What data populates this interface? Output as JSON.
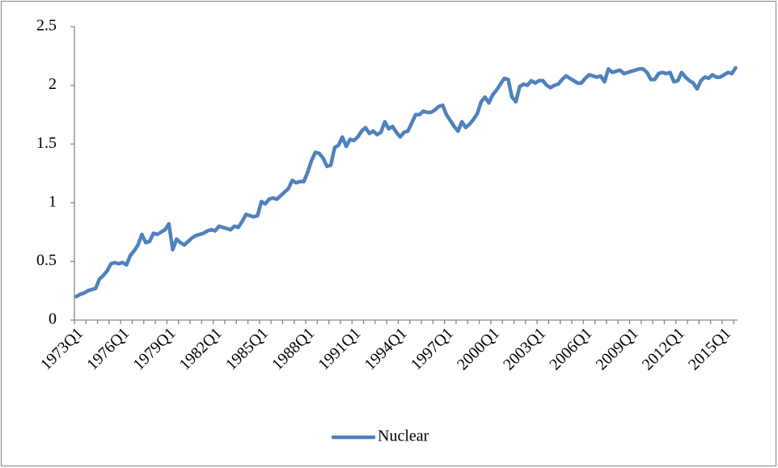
{
  "chart_data": {
    "type": "line",
    "categories": [
      "1973Q1",
      null,
      null,
      null,
      null,
      null,
      null,
      null,
      null,
      null,
      null,
      null,
      "1976Q1",
      null,
      null,
      null,
      null,
      null,
      null,
      null,
      null,
      null,
      null,
      null,
      "1979Q1",
      null,
      null,
      null,
      null,
      null,
      null,
      null,
      null,
      null,
      null,
      null,
      "1982Q1",
      null,
      null,
      null,
      null,
      null,
      null,
      null,
      null,
      null,
      null,
      null,
      "1985Q1",
      null,
      null,
      null,
      null,
      null,
      null,
      null,
      null,
      null,
      null,
      null,
      "1988Q1",
      null,
      null,
      null,
      null,
      null,
      null,
      null,
      null,
      null,
      null,
      null,
      "1991Q1",
      null,
      null,
      null,
      null,
      null,
      null,
      null,
      null,
      null,
      null,
      null,
      "1994Q1",
      null,
      null,
      null,
      null,
      null,
      null,
      null,
      null,
      null,
      null,
      null,
      "1997Q1",
      null,
      null,
      null,
      null,
      null,
      null,
      null,
      null,
      null,
      null,
      null,
      "2000Q1",
      null,
      null,
      null,
      null,
      null,
      null,
      null,
      null,
      null,
      null,
      null,
      "2003Q1",
      null,
      null,
      null,
      null,
      null,
      null,
      null,
      null,
      null,
      null,
      null,
      "2006Q1",
      null,
      null,
      null,
      null,
      null,
      null,
      null,
      null,
      null,
      null,
      null,
      "2009Q1",
      null,
      null,
      null,
      null,
      null,
      null,
      null,
      null,
      null,
      null,
      null,
      "2012Q1",
      null,
      null,
      null,
      null,
      null,
      null,
      null,
      null,
      null,
      null,
      null,
      "2015Q1",
      null,
      null,
      null
    ],
    "series": [
      {
        "name": "Nuclear",
        "color": "#4f81bd",
        "values": [
          0.2,
          0.22,
          0.23,
          0.25,
          0.26,
          0.27,
          0.35,
          0.38,
          0.42,
          0.48,
          0.49,
          0.48,
          0.49,
          0.47,
          0.55,
          0.59,
          0.64,
          0.73,
          0.66,
          0.67,
          0.74,
          0.73,
          0.75,
          0.77,
          0.82,
          0.6,
          0.69,
          0.66,
          0.64,
          0.67,
          0.7,
          0.72,
          0.73,
          0.74,
          0.76,
          0.77,
          0.76,
          0.8,
          0.79,
          0.78,
          0.77,
          0.8,
          0.79,
          0.84,
          0.9,
          0.89,
          0.88,
          0.89,
          1.01,
          0.99,
          1.03,
          1.04,
          1.03,
          1.06,
          1.09,
          1.12,
          1.19,
          1.17,
          1.18,
          1.18,
          1.26,
          1.36,
          1.43,
          1.42,
          1.38,
          1.31,
          1.32,
          1.47,
          1.49,
          1.56,
          1.48,
          1.54,
          1.53,
          1.56,
          1.61,
          1.64,
          1.59,
          1.61,
          1.58,
          1.6,
          1.69,
          1.63,
          1.65,
          1.6,
          1.56,
          1.6,
          1.61,
          1.68,
          1.75,
          1.75,
          1.78,
          1.77,
          1.77,
          1.79,
          1.82,
          1.83,
          1.75,
          1.7,
          1.65,
          1.61,
          1.69,
          1.64,
          1.67,
          1.71,
          1.76,
          1.86,
          1.9,
          1.85,
          1.92,
          1.96,
          2.01,
          2.06,
          2.05,
          1.9,
          1.86,
          1.99,
          2.01,
          2.0,
          2.04,
          2.02,
          2.04,
          2.04,
          2.0,
          1.98,
          2.0,
          2.01,
          2.05,
          2.08,
          2.06,
          2.04,
          2.02,
          2.02,
          2.06,
          2.09,
          2.08,
          2.07,
          2.08,
          2.03,
          2.14,
          2.11,
          2.12,
          2.13,
          2.1,
          2.11,
          2.12,
          2.13,
          2.14,
          2.14,
          2.11,
          2.05,
          2.05,
          2.1,
          2.11,
          2.1,
          2.11,
          2.03,
          2.04,
          2.11,
          2.07,
          2.04,
          2.02,
          1.97,
          2.04,
          2.07,
          2.06,
          2.09,
          2.07,
          2.07,
          2.09,
          2.11,
          2.1,
          2.15
        ]
      }
    ],
    "ylim": [
      0,
      2.5
    ],
    "yticks": [
      0,
      0.5,
      1,
      1.5,
      2,
      2.5
    ],
    "grid": false,
    "legend": "bottom"
  }
}
